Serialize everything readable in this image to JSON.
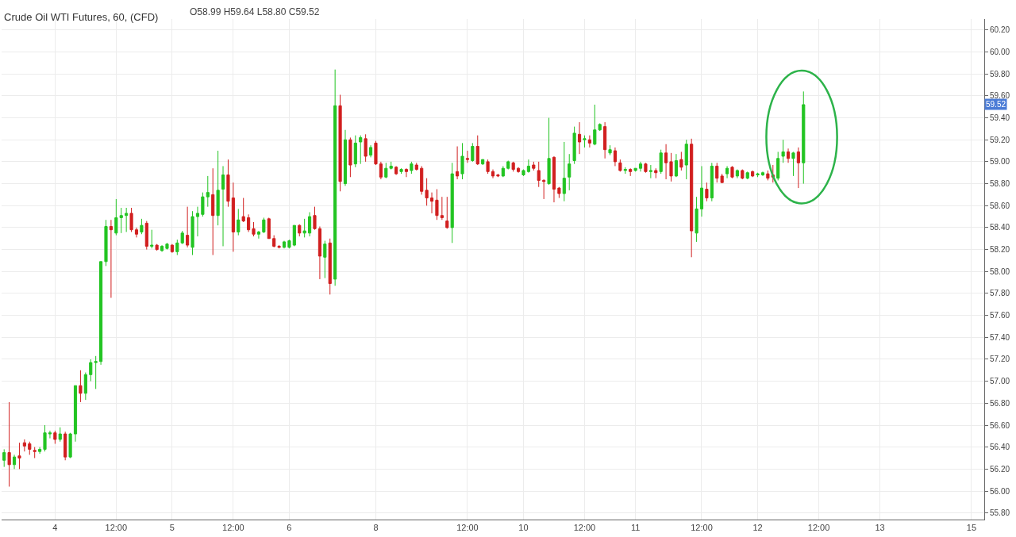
{
  "chart_data": {
    "type": "candlestick",
    "title": "Crude Oil WTI Futures, 60, (CFD)",
    "subtitle": "O58.99 H59.64 L58.80 C59.52",
    "annotations": [
      {
        "text": "59.52",
        "y": 59.52
      }
    ],
    "categories": [
      null,
      null,
      null,
      null,
      null,
      null,
      null,
      null,
      null,
      null,
      "4",
      null,
      null,
      null,
      null,
      null,
      null,
      null,
      null,
      null,
      null,
      null,
      "12:00",
      null,
      null,
      null,
      null,
      null,
      null,
      null,
      null,
      null,
      null,
      "5",
      null,
      null,
      null,
      null,
      null,
      null,
      null,
      null,
      null,
      null,
      null,
      "12:00",
      null,
      null,
      null,
      null,
      null,
      null,
      null,
      null,
      null,
      null,
      "6",
      null,
      null,
      null,
      null,
      null,
      null,
      null,
      null,
      null,
      null,
      null,
      null,
      null,
      null,
      null,
      null,
      "8",
      null,
      null,
      null,
      null,
      null,
      null,
      null,
      null,
      null,
      null,
      null,
      null,
      null,
      null,
      null,
      null,
      null,
      "12:00",
      null,
      null,
      null,
      null,
      null,
      null,
      null,
      null,
      null,
      null,
      "10",
      null,
      null,
      null,
      null,
      null,
      null,
      null,
      null,
      null,
      null,
      null,
      "12:00",
      null,
      null,
      null,
      null,
      null,
      null,
      null,
      null,
      null,
      "11",
      null,
      null,
      null,
      null,
      null,
      null,
      null,
      null,
      null,
      null,
      null,
      null,
      "12:00",
      null,
      null,
      null,
      null,
      null,
      null,
      null,
      null,
      null,
      null,
      "12",
      null,
      null,
      null,
      null,
      null,
      null,
      null,
      null,
      null,
      null,
      null,
      "12:00",
      null,
      null,
      null,
      null,
      null,
      null,
      null,
      null,
      null,
      null,
      null,
      "13",
      null,
      null,
      null,
      null,
      null,
      null,
      null,
      null,
      null,
      null,
      null,
      null,
      null,
      null,
      null,
      null,
      null,
      "15",
      null,
      null
    ],
    "ohlc": [
      [
        56.28,
        56.38,
        56.22,
        56.35
      ],
      [
        56.35,
        56.81,
        56.04,
        56.24
      ],
      [
        56.24,
        56.33,
        56.2,
        56.31
      ],
      [
        56.32,
        56.44,
        56.2,
        56.3
      ],
      [
        56.44,
        56.47,
        56.36,
        56.41
      ],
      [
        56.43,
        56.45,
        56.33,
        56.38
      ],
      [
        56.37,
        56.4,
        56.3,
        56.36
      ],
      [
        56.36,
        56.4,
        56.34,
        56.38
      ],
      [
        56.38,
        56.6,
        56.36,
        56.53
      ],
      [
        56.52,
        56.55,
        56.48,
        56.53
      ],
      [
        56.53,
        56.55,
        56.43,
        56.47
      ],
      [
        56.47,
        56.58,
        56.45,
        56.52
      ],
      [
        56.52,
        56.54,
        56.28,
        56.31
      ],
      [
        56.31,
        56.53,
        56.3,
        56.52
      ],
      [
        56.52,
        56.96,
        56.45,
        56.96
      ],
      [
        56.96,
        57.1,
        56.81,
        56.89
      ],
      [
        56.89,
        57.08,
        56.83,
        57.06
      ],
      [
        57.06,
        57.2,
        57.0,
        57.17
      ],
      [
        57.17,
        57.23,
        56.93,
        57.18
      ],
      [
        57.18,
        58.09,
        57.15,
        58.09
      ],
      [
        58.09,
        58.47,
        58.05,
        58.41
      ],
      [
        58.41,
        58.47,
        57.76,
        58.38
      ],
      [
        58.35,
        58.66,
        58.33,
        58.49
      ],
      [
        58.49,
        58.58,
        58.35,
        58.51
      ],
      [
        58.51,
        58.58,
        58.36,
        58.53
      ],
      [
        58.53,
        58.58,
        58.36,
        58.38
      ],
      [
        58.38,
        58.4,
        58.31,
        58.34
      ],
      [
        58.36,
        58.48,
        58.34,
        58.42
      ],
      [
        58.44,
        58.46,
        58.2,
        58.23
      ],
      [
        58.23,
        58.38,
        58.21,
        58.24
      ],
      [
        58.24,
        58.25,
        58.19,
        58.2
      ],
      [
        58.19,
        58.24,
        58.18,
        58.23
      ],
      [
        58.21,
        58.26,
        58.2,
        58.25
      ],
      [
        58.24,
        58.25,
        58.17,
        58.18
      ],
      [
        58.18,
        58.29,
        58.15,
        58.26
      ],
      [
        58.26,
        58.37,
        58.25,
        58.35
      ],
      [
        58.33,
        58.59,
        58.22,
        58.24
      ],
      [
        58.22,
        58.55,
        58.15,
        58.5
      ],
      [
        58.5,
        58.59,
        58.32,
        58.53
      ],
      [
        58.52,
        58.72,
        58.5,
        58.68
      ],
      [
        58.68,
        58.87,
        58.59,
        58.72
      ],
      [
        58.7,
        58.94,
        58.15,
        58.51
      ],
      [
        58.51,
        59.1,
        58.42,
        58.74
      ],
      [
        58.75,
        58.96,
        58.23,
        58.88
      ],
      [
        58.88,
        59.02,
        58.59,
        58.64
      ],
      [
        58.67,
        58.81,
        58.18,
        58.36
      ],
      [
        58.36,
        58.57,
        58.33,
        58.47
      ],
      [
        58.5,
        58.67,
        58.45,
        58.46
      ],
      [
        58.49,
        58.52,
        58.36,
        58.38
      ],
      [
        58.39,
        58.45,
        58.32,
        58.34
      ],
      [
        58.34,
        58.37,
        58.3,
        58.36
      ],
      [
        58.36,
        58.49,
        58.35,
        58.47
      ],
      [
        58.48,
        58.49,
        58.3,
        58.3
      ],
      [
        58.3,
        58.33,
        58.22,
        58.23
      ],
      [
        58.23,
        58.24,
        58.21,
        58.22
      ],
      [
        58.22,
        58.28,
        58.21,
        58.27
      ],
      [
        58.22,
        58.29,
        58.21,
        58.28
      ],
      [
        58.24,
        58.42,
        58.23,
        58.42
      ],
      [
        58.42,
        58.43,
        58.32,
        58.35
      ],
      [
        58.35,
        58.48,
        58.31,
        58.37
      ],
      [
        58.35,
        58.54,
        58.32,
        58.5
      ],
      [
        58.51,
        58.59,
        58.38,
        58.39
      ],
      [
        58.39,
        58.41,
        57.93,
        58.14
      ],
      [
        58.13,
        58.28,
        57.94,
        58.25
      ],
      [
        58.26,
        58.3,
        57.79,
        57.89
      ],
      [
        57.93,
        59.84,
        57.87,
        59.51
      ],
      [
        59.51,
        59.61,
        58.73,
        58.82
      ],
      [
        58.8,
        59.29,
        58.78,
        59.2
      ],
      [
        59.2,
        59.22,
        58.86,
        58.97
      ],
      [
        58.98,
        59.24,
        58.95,
        59.17
      ],
      [
        59.18,
        59.24,
        58.98,
        59.22
      ],
      [
        59.21,
        59.25,
        59.0,
        59.05
      ],
      [
        59.06,
        59.15,
        59.04,
        59.13
      ],
      [
        59.17,
        59.19,
        58.97,
        58.98
      ],
      [
        58.98,
        59.0,
        58.84,
        58.86
      ],
      [
        58.86,
        58.99,
        58.85,
        58.94
      ],
      [
        58.94,
        59.0,
        58.93,
        58.96
      ],
      [
        58.95,
        58.96,
        58.88,
        58.89
      ],
      [
        58.91,
        58.94,
        58.89,
        58.93
      ],
      [
        58.93,
        58.94,
        58.86,
        58.91
      ],
      [
        58.92,
        59.0,
        58.89,
        58.98
      ],
      [
        58.97,
        58.99,
        58.92,
        58.93
      ],
      [
        58.94,
        58.96,
        58.7,
        58.73
      ],
      [
        58.74,
        58.85,
        58.6,
        58.67
      ],
      [
        58.67,
        58.72,
        58.53,
        58.64
      ],
      [
        58.65,
        58.75,
        58.47,
        58.51
      ],
      [
        58.51,
        58.68,
        58.47,
        58.49
      ],
      [
        58.46,
        58.68,
        58.39,
        58.4
      ],
      [
        58.4,
        58.99,
        58.26,
        58.89
      ],
      [
        58.91,
        59.14,
        58.84,
        58.87
      ],
      [
        58.89,
        59.17,
        58.84,
        59.05
      ],
      [
        59.03,
        59.1,
        58.99,
        59.02
      ],
      [
        59.01,
        59.17,
        59.0,
        59.14
      ],
      [
        59.14,
        59.24,
        58.97,
        58.98
      ],
      [
        58.98,
        59.02,
        58.97,
        59.02
      ],
      [
        59.0,
        59.02,
        58.89,
        58.91
      ],
      [
        58.91,
        58.93,
        58.85,
        58.87
      ],
      [
        58.88,
        58.89,
        58.86,
        58.87
      ],
      [
        58.87,
        58.96,
        58.86,
        58.94
      ],
      [
        58.94,
        59.01,
        58.93,
        59.0
      ],
      [
        58.99,
        59.0,
        58.91,
        58.93
      ],
      [
        58.94,
        58.95,
        58.9,
        58.91
      ],
      [
        58.88,
        58.93,
        58.87,
        58.92
      ],
      [
        58.91,
        59.02,
        58.9,
        58.96
      ],
      [
        58.97,
        59.0,
        58.92,
        58.94
      ],
      [
        58.92,
        59.0,
        58.77,
        58.83
      ],
      [
        58.83,
        58.84,
        58.66,
        58.82
      ],
      [
        58.8,
        59.4,
        58.79,
        59.03
      ],
      [
        59.04,
        59.05,
        58.63,
        58.75
      ],
      [
        58.76,
        58.77,
        58.67,
        58.71
      ],
      [
        58.71,
        59.18,
        58.64,
        58.85
      ],
      [
        58.86,
        59.07,
        58.74,
        58.98
      ],
      [
        59.01,
        59.32,
        58.98,
        59.26
      ],
      [
        59.25,
        59.36,
        59.07,
        59.18
      ],
      [
        59.2,
        59.24,
        59.13,
        59.21
      ],
      [
        59.2,
        59.24,
        59.13,
        59.17
      ],
      [
        59.16,
        59.52,
        59.15,
        59.29
      ],
      [
        59.29,
        59.35,
        59.28,
        59.34
      ],
      [
        59.32,
        59.36,
        59.03,
        59.11
      ],
      [
        59.08,
        59.15,
        59.06,
        59.11
      ],
      [
        59.1,
        59.13,
        58.96,
        59.0
      ],
      [
        58.99,
        59.02,
        58.91,
        58.92
      ],
      [
        58.92,
        58.95,
        58.89,
        58.93
      ],
      [
        58.93,
        58.94,
        58.87,
        58.91
      ],
      [
        58.92,
        58.94,
        58.91,
        58.94
      ],
      [
        58.94,
        59.0,
        58.91,
        58.98
      ],
      [
        58.98,
        58.99,
        58.9,
        58.91
      ],
      [
        58.91,
        58.97,
        58.85,
        58.92
      ],
      [
        58.92,
        58.94,
        58.85,
        58.9
      ],
      [
        58.91,
        59.11,
        58.89,
        59.08
      ],
      [
        59.08,
        59.16,
        58.84,
        58.99
      ],
      [
        59.0,
        59.08,
        58.82,
        58.87
      ],
      [
        58.87,
        59.07,
        58.86,
        59.01
      ],
      [
        59.02,
        59.09,
        58.92,
        58.95
      ],
      [
        58.97,
        59.2,
        58.84,
        59.16
      ],
      [
        59.16,
        59.21,
        58.13,
        58.37
      ],
      [
        58.35,
        58.68,
        58.27,
        58.57
      ],
      [
        58.57,
        58.96,
        58.5,
        58.76
      ],
      [
        58.75,
        58.81,
        58.64,
        58.67
      ],
      [
        58.67,
        58.99,
        58.64,
        58.96
      ],
      [
        58.96,
        58.99,
        58.81,
        58.85
      ],
      [
        58.87,
        58.89,
        58.81,
        58.81
      ],
      [
        58.89,
        58.96,
        58.85,
        58.94
      ],
      [
        58.95,
        58.96,
        58.85,
        58.86
      ],
      [
        58.87,
        58.93,
        58.85,
        58.92
      ],
      [
        58.92,
        58.93,
        58.84,
        58.85
      ],
      [
        58.85,
        58.91,
        58.84,
        58.9
      ],
      [
        58.91,
        58.92,
        58.86,
        58.87
      ],
      [
        58.88,
        58.9,
        58.86,
        58.89
      ],
      [
        58.88,
        58.91,
        58.87,
        58.9
      ],
      [
        58.89,
        58.92,
        58.83,
        58.85
      ],
      [
        58.88,
        58.97,
        58.81,
        58.86
      ],
      [
        58.85,
        59.09,
        58.83,
        59.03
      ],
      [
        59.05,
        59.2,
        58.99,
        59.09
      ],
      [
        59.09,
        59.12,
        58.99,
        59.03
      ],
      [
        59.03,
        59.09,
        58.87,
        59.08
      ],
      [
        59.09,
        59.13,
        58.76,
        58.99
      ],
      [
        58.99,
        59.64,
        58.8,
        59.52
      ],
      null,
      null,
      null,
      null,
      null,
      null,
      null,
      null,
      null,
      null,
      null,
      null,
      null,
      null,
      null,
      null,
      null,
      null,
      null,
      null,
      null,
      null,
      null,
      null,
      null,
      null,
      null,
      null,
      null,
      null,
      null,
      null,
      null,
      null,
      null
    ],
    "colors": [
      "#22c422",
      "#d11f1f",
      "#22c422",
      "#d11f1f",
      "#d11f1f",
      "#d11f1f",
      "#d11f1f",
      "#22c422",
      "#22c422",
      "#22c422",
      "#d11f1f",
      "#22c422",
      "#d11f1f",
      "#22c422",
      "#22c422",
      "#d11f1f",
      "#22c422",
      "#22c422",
      "#22c422",
      "#22c422",
      "#22c422",
      "#d11f1f",
      "#22c422",
      "#22c422",
      "#22c422",
      "#d11f1f",
      "#d11f1f",
      "#22c422",
      "#d11f1f",
      "#22c422",
      "#d11f1f",
      "#22c422",
      "#22c422",
      "#d11f1f",
      "#22c422",
      "#22c422",
      "#d11f1f",
      "#22c422",
      "#22c422",
      "#22c422",
      "#22c422",
      "#d11f1f",
      "#22c422",
      "#22c422",
      "#d11f1f",
      "#d11f1f",
      "#22c422",
      "#d11f1f",
      "#d11f1f",
      "#d11f1f",
      "#22c422",
      "#22c422",
      "#d11f1f",
      "#d11f1f",
      "#d11f1f",
      "#22c422",
      "#22c422",
      "#22c422",
      "#d11f1f",
      "#22c422",
      "#22c422",
      "#d11f1f",
      "#d11f1f",
      "#22c422",
      "#d11f1f",
      "#22c422",
      "#d11f1f",
      "#22c422",
      "#d11f1f",
      "#22c422",
      "#22c422",
      "#d11f1f",
      "#22c422",
      "#d11f1f",
      "#d11f1f",
      "#22c422",
      "#22c422",
      "#d11f1f",
      "#22c422",
      "#d11f1f",
      "#22c422",
      "#d11f1f",
      "#d11f1f",
      "#d11f1f",
      "#d11f1f",
      "#d11f1f",
      "#d11f1f",
      "#d11f1f",
      "#22c422",
      "#d11f1f",
      "#22c422",
      "#d11f1f",
      "#22c422",
      "#d11f1f",
      "#22c422",
      "#d11f1f",
      "#d11f1f",
      "#d11f1f",
      "#22c422",
      "#22c422",
      "#d11f1f",
      "#d11f1f",
      "#22c422",
      "#22c422",
      "#d11f1f",
      "#d11f1f",
      "#d11f1f",
      "#22c422",
      "#d11f1f",
      "#d11f1f",
      "#22c422",
      "#22c422",
      "#22c422",
      "#d11f1f",
      "#22c422",
      "#d11f1f",
      "#22c422",
      "#22c422",
      "#d11f1f",
      "#22c422",
      "#d11f1f",
      "#d11f1f",
      "#22c422",
      "#d11f1f",
      "#22c422",
      "#22c422",
      "#d11f1f",
      "#22c422",
      "#d11f1f",
      "#22c422",
      "#d11f1f",
      "#d11f1f",
      "#22c422",
      "#d11f1f",
      "#22c422",
      "#d11f1f",
      "#22c422",
      "#22c422",
      "#d11f1f",
      "#22c422",
      "#d11f1f",
      "#d11f1f",
      "#22c422",
      "#d11f1f",
      "#22c422",
      "#d11f1f",
      "#22c422",
      "#d11f1f",
      "#22c422",
      "#22c422",
      "#d11f1f",
      "#d11f1f",
      "#22c422",
      "#22c422",
      "#d11f1f",
      "#22c422",
      "#d11f1f",
      "#22c422",
      null,
      null,
      null,
      null,
      null,
      null,
      null,
      null,
      null,
      null,
      null,
      null,
      null,
      null,
      null,
      null,
      null,
      null,
      null,
      null,
      null,
      null,
      null,
      null,
      null,
      null,
      null,
      null,
      null,
      null,
      null,
      null,
      null,
      null,
      null
    ],
    "ylim": [
      55.74,
      60.3
    ],
    "yticks": [
      {
        "value": 55.8,
        "label": "55.80"
      },
      {
        "value": 56.0,
        "label": "56.00"
      },
      {
        "value": 56.2,
        "label": "56.20"
      },
      {
        "value": 56.4,
        "label": "56.40"
      },
      {
        "value": 56.6,
        "label": "56.60"
      },
      {
        "value": 56.8,
        "label": "56.80"
      },
      {
        "value": 57.0,
        "label": "57.00"
      },
      {
        "value": 57.2,
        "label": "57.20"
      },
      {
        "value": 57.4,
        "label": "57.40"
      },
      {
        "value": 57.6,
        "label": "57.60"
      },
      {
        "value": 57.8,
        "label": "57.80"
      },
      {
        "value": 58.0,
        "label": "58.00"
      },
      {
        "value": 58.2,
        "label": "58.20"
      },
      {
        "value": 58.4,
        "label": "58.40"
      },
      {
        "value": 58.6,
        "label": "58.60"
      },
      {
        "value": 58.8,
        "label": "58.80"
      },
      {
        "value": 59.0,
        "label": "59.00"
      },
      {
        "value": 59.2,
        "label": "59.20"
      },
      {
        "value": 59.4,
        "label": "59.40"
      },
      {
        "value": 59.6,
        "label": "59.60"
      },
      {
        "value": 59.8,
        "label": "59.80"
      },
      {
        "value": 60.0,
        "label": "60.00"
      },
      {
        "value": 60.2,
        "label": "60.20"
      }
    ],
    "grid": true
  }
}
